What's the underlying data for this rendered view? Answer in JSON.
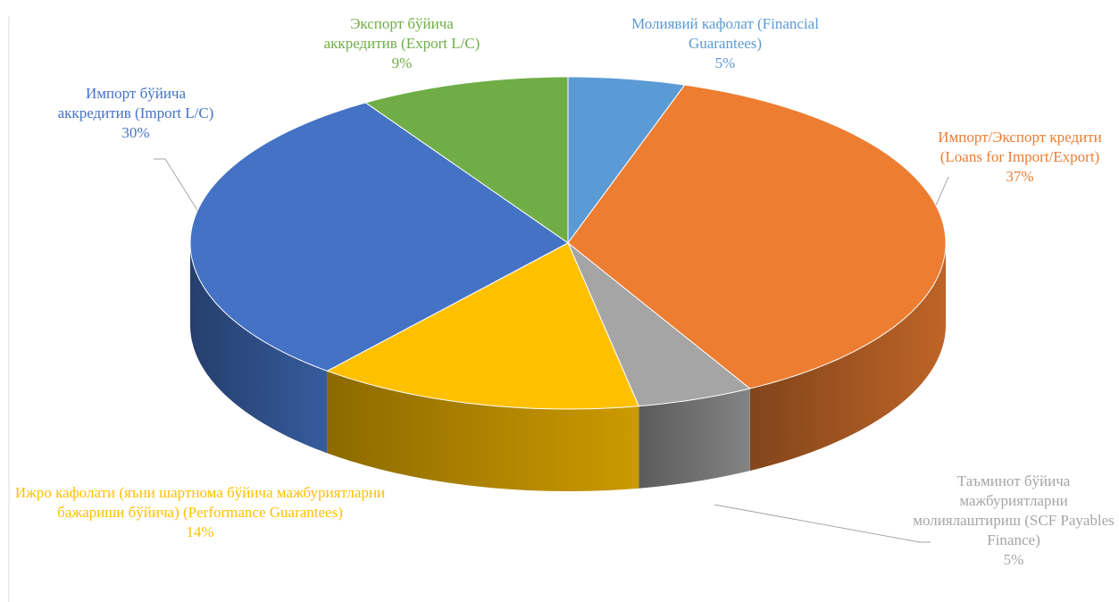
{
  "chart_data": {
    "type": "pie3d",
    "categories": [
      "Молиявий кафолат (Financial Guarantees)",
      "Импорт/Экспорт кредити (Loans for Import/Export)",
      "Таъминот бўйича мажбуриятларни молиялаштириш (SCF Payables Finance)",
      "Ижро кафолати (яъни шартнома бўйича мажбуриятларни бажариши бўйича) (Performance Guarantees)",
      "Импорт бўйича аккредитив (Import L/C)",
      "Экспорт бўйича аккредитив (Export L/C)"
    ],
    "values": [
      5,
      37,
      5,
      14,
      30,
      9
    ],
    "value_labels": [
      "5%",
      "37%",
      "5%",
      "14%",
      "30%",
      "9%"
    ],
    "colors": [
      "#5b9bd5",
      "#ed7d31",
      "#a5a5a5",
      "#ffc000",
      "#4472c4",
      "#70ad47"
    ],
    "label_colors": [
      "#5b9bd5",
      "#ed7d31",
      "#a5a5a5",
      "#ffc000",
      "#4472c4",
      "#70ad47"
    ]
  }
}
